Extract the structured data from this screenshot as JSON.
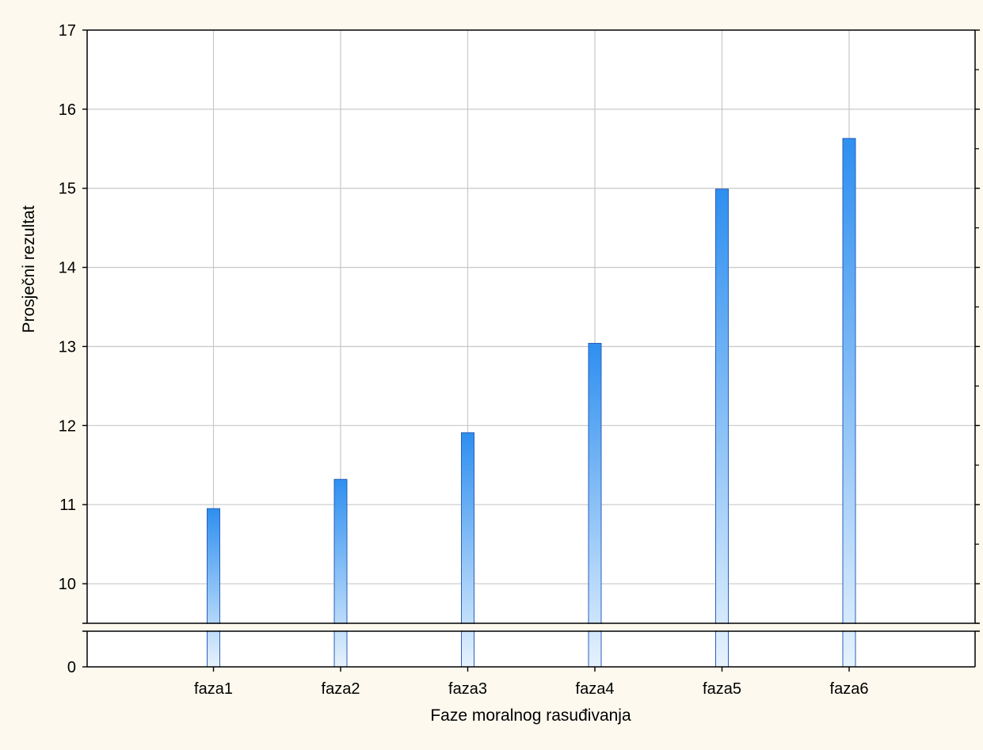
{
  "chart_data": {
    "type": "bar",
    "title": "",
    "xlabel": "Faze moralnog rasuđivanja",
    "ylabel": "Prosječni rezultat",
    "categories": [
      "faza1",
      "faza2",
      "faza3",
      "faza4",
      "faza5",
      "faza6"
    ],
    "values": [
      10.95,
      11.32,
      11.91,
      13.04,
      14.99,
      15.63
    ],
    "ylim": [
      0,
      17
    ],
    "axis_break": true,
    "y_ticks": [
      "17",
      "16",
      "15",
      "14",
      "13",
      "12",
      "11",
      "10",
      "0"
    ],
    "grid": true,
    "colors": {
      "background": "#fdf9ee",
      "plot_background": "#ffffff",
      "grid": "#c8c8c8",
      "bar_top": "#2e8ff0",
      "bar_bottom": "#e6f2fd",
      "bar_outline": "#2a5fb8"
    }
  }
}
